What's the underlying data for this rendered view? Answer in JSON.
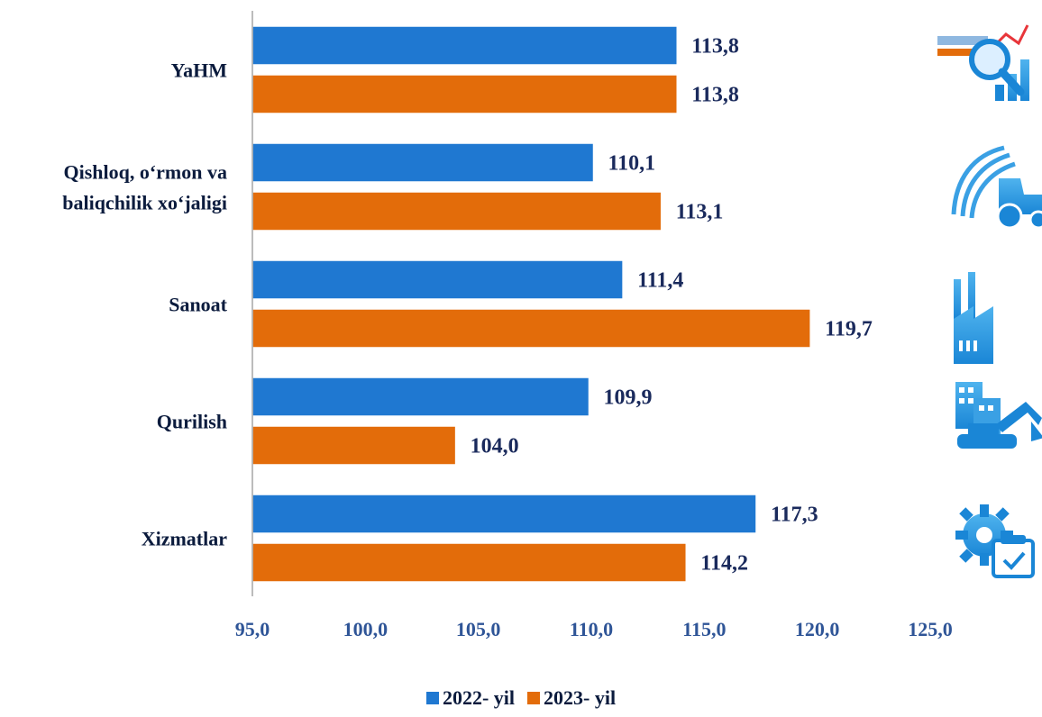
{
  "chart_data": {
    "type": "bar",
    "orientation": "horizontal",
    "categories": [
      "YaHM",
      "Qishloq, o‘rmon va baliqchilik xo‘jaligi",
      "Sanoat",
      "Qurilish",
      "Xizmatlar"
    ],
    "category_lines": [
      [
        "YaHM"
      ],
      [
        "Qishloq, o‘rmon va",
        "baliqchilik xo‘jaligi"
      ],
      [
        "Sanoat"
      ],
      [
        "Qurilish"
      ],
      [
        "Xizmatlar"
      ]
    ],
    "series": [
      {
        "name": "2022- yil",
        "color": "#1f78d1",
        "values": [
          113.8,
          110.1,
          111.4,
          109.9,
          117.3
        ],
        "labels": [
          "113,8",
          "110,1",
          "111,4",
          "109,9",
          "117,3"
        ]
      },
      {
        "name": "2023- yil",
        "color": "#e36c0a",
        "values": [
          113.8,
          113.1,
          119.7,
          104.0,
          114.2
        ],
        "labels": [
          "113,8",
          "113,1",
          "119,7",
          "104,0",
          "114,2"
        ]
      }
    ],
    "xlim": [
      95,
      125
    ],
    "xticks": [
      95,
      100,
      105,
      110,
      115,
      120,
      125
    ],
    "xtick_labels": [
      "95,0",
      "100,0",
      "105,0",
      "110,0",
      "115,0",
      "120,0",
      "125,0"
    ],
    "grid": false,
    "legend_position": "bottom-center",
    "category_icons": [
      "analytics-magnifier-icon",
      "agriculture-tractor-icon",
      "factory-icon",
      "construction-excavator-icon",
      "services-gear-icon"
    ]
  }
}
